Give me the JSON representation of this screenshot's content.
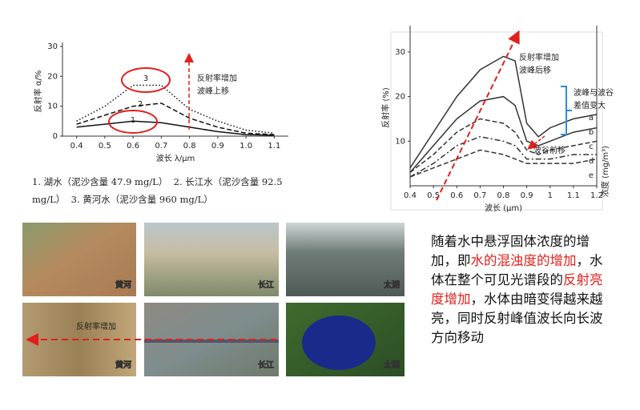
{
  "chart_data": [
    {
      "type": "line",
      "y_label": "反射率 α/%",
      "x_label": "波长 λ/μm",
      "x": [
        0.4,
        0.5,
        0.6,
        0.7,
        0.8,
        0.9,
        1.0,
        1.1
      ],
      "xlim": [
        0.35,
        1.15
      ],
      "ylim": [
        0,
        30
      ],
      "xticks": [
        0.4,
        0.5,
        0.6,
        0.7,
        0.8,
        0.9,
        {
          "value": 1,
          "label": "1.0"
        },
        1.1
      ],
      "yticks": [
        0,
        10,
        20,
        30
      ],
      "series": [
        {
          "name": "1",
          "color": "#111111",
          "dash": "solid",
          "values": [
            3,
            4,
            5,
            4.5,
            3,
            1.5,
            0.5,
            0.3
          ]
        },
        {
          "name": "2",
          "color": "#111111",
          "dash": "dashed",
          "values": [
            4,
            7,
            10,
            11,
            6,
            3,
            1,
            0.5
          ]
        },
        {
          "name": "3",
          "color": "#111111",
          "dash": "dotted",
          "values": [
            5,
            10,
            17,
            17,
            9,
            5,
            2,
            1
          ]
        }
      ],
      "annotations": [
        "反射率增加",
        "波峰上移"
      ]
    },
    {
      "type": "line",
      "y_label": "反射率 (%)",
      "x_label": "波长 (μm)",
      "y2_label": "浓度 (mg/m³)",
      "x": [
        0.4,
        0.5,
        0.6,
        0.7,
        0.8,
        0.85,
        0.9,
        0.95,
        1.0,
        1.1,
        1.2
      ],
      "xlim": [
        0.4,
        1.2
      ],
      "ylim": [
        0,
        35
      ],
      "xticks": [
        0.4,
        0.5,
        0.6,
        0.7,
        0.8,
        0.9,
        1,
        1.1,
        1.2
      ],
      "yticks": [
        10,
        20,
        30
      ],
      "series": [
        {
          "name": "a",
          "color": "#333333",
          "dash": "solid",
          "values": [
            4,
            12,
            20,
            26,
            29,
            28,
            14,
            11,
            13,
            15,
            16
          ]
        },
        {
          "name": "b",
          "color": "#333333",
          "dash": "solid",
          "values": [
            3,
            9,
            15,
            19,
            20,
            18,
            10,
            9,
            10,
            12,
            13
          ]
        },
        {
          "name": "c",
          "color": "#333333",
          "dash": "dashed",
          "values": [
            3,
            7,
            12,
            15,
            14,
            12,
            8,
            7,
            8,
            9,
            10
          ]
        },
        {
          "name": "d",
          "color": "#333333",
          "dash": "dashdot",
          "values": [
            2,
            5,
            9,
            11,
            10,
            9,
            6,
            6,
            6,
            7,
            7
          ]
        },
        {
          "name": "e",
          "color": "#333333",
          "dash": "dashed",
          "values": [
            2,
            4,
            6,
            8,
            7,
            6,
            5,
            5,
            5,
            5,
            6
          ]
        }
      ],
      "annotations": [
        "反射率增加",
        "波峰后移",
        "波峰与波谷",
        "差值变大",
        "波谷前移"
      ]
    }
  ],
  "caption": [
    "1. 湖水（泥沙含量 47.9 mg/L）",
    "2. 长江水（泥沙含量 92.5 mg/L）",
    "3. 黄河水（泥沙含量 960 mg/L）"
  ],
  "photos": [
    "黄河",
    "长江",
    "太湖",
    "黄河",
    "长江",
    "太湖"
  ],
  "photo_arrow": "反射率增加",
  "description": [
    "随着水中悬浮固体浓度的增加，即",
    "水的混浊度的增加",
    "，水体在整个可见光谱段的",
    "反射亮度增加",
    "，水体由暗变得越来越亮，同时反射峰值波长向长波方向移动"
  ]
}
